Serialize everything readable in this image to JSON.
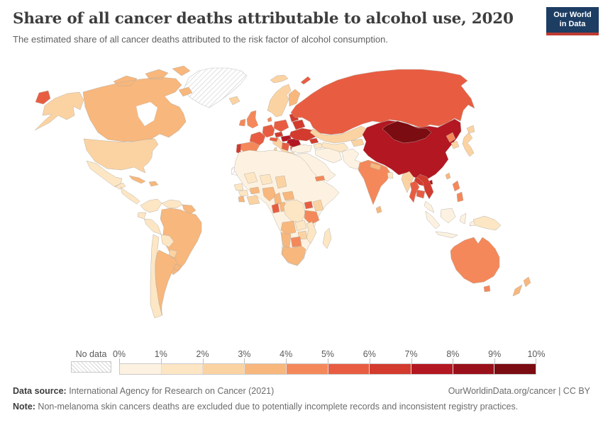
{
  "header": {
    "title": "Share of all cancer deaths attributable to alcohol use, 2020",
    "subtitle": "The estimated share of all cancer deaths attributed to the risk factor of alcohol consumption.",
    "logo_line1": "Our World",
    "logo_line2": "in Data",
    "logo_bg_color": "#1d3d63",
    "logo_bar_color": "#bf3a32"
  },
  "legend": {
    "no_data_label": "No data",
    "tick_labels": [
      "0%",
      "1%",
      "2%",
      "3%",
      "4%",
      "5%",
      "6%",
      "7%",
      "8%",
      "9%",
      "10%"
    ]
  },
  "footer": {
    "source_label": "Data source:",
    "source_text": " International Agency for Research on Cancer (2021)",
    "link_text": "OurWorldinData.org/cancer | CC BY",
    "note_label": "Note:",
    "note_text": " Non-melanoma skin cancers deaths are excluded due to potentially incomplete records and inconsistent registry practices."
  },
  "chart_data": {
    "type": "choropleth_map",
    "title": "Share of all cancer deaths attributable to alcohol use",
    "year": "2020",
    "unit": "%",
    "range": [
      0,
      10
    ],
    "bucket_width": 1,
    "colors": [
      "#fdf2e1",
      "#fde6c4",
      "#fbd3a2",
      "#f8b77c",
      "#f4885a",
      "#e85d42",
      "#d23b2e",
      "#b31722",
      "#9a101a",
      "#7a0c12"
    ],
    "no_data_fill": "hatched",
    "regions": {
      "Greenland": null,
      "Western Sahara": null,
      "Canada": 3.5,
      "United States": 2.5,
      "Mexico": 1.5,
      "Central America": 1.5,
      "Cuba": 3.5,
      "Hispaniola": 3.5,
      "Iceland": 2.5,
      "Colombia": 1.5,
      "Venezuela": 1.5,
      "Guyanas": 3.5,
      "Ecuador": 1.5,
      "Peru": 1.5,
      "Brazil": 3.5,
      "Bolivia": 1.5,
      "Paraguay": 2.5,
      "Chile": 1.5,
      "Argentina": 3.5,
      "Uruguay": 3.5,
      "United Kingdom": 4.5,
      "Ireland": 4.5,
      "Norway & Sweden": 2.5,
      "Finland": 3.5,
      "Denmark": 4.5,
      "Germany": 5.5,
      "France": 5.5,
      "Spain": 4.5,
      "Portugal": 6.5,
      "Italy": 2.5,
      "Poland": 5.5,
      "Czechia": 6.5,
      "Austria": 5.5,
      "Hungary & Slovakia": 7.5,
      "Romania": 7.5,
      "Moldova": 8.5,
      "Balkans": 5.5,
      "Bulgaria": 5.5,
      "Greece": 2.5,
      "Baltic states": 6.5,
      "Belarus": 6.5,
      "Ukraine": 6.5,
      "Russia": 5.5,
      "Kazakhstan": 2.5,
      "Uzbekistan & Turkmenistan": 1.5,
      "Kyrgyzstan & Tajikistan": 2.5,
      "Georgia": 6.5,
      "Azerbaijan & Armenia": 1.5,
      "Turkey": 0.5,
      "Middle East": 0.5,
      "Iran": 0.5,
      "Afghanistan & Pakistan": 0.5,
      "India": 4.5,
      "Nepal": 3.5,
      "Bangladesh": 1.5,
      "Sri Lanka": 3.5,
      "Myanmar": 2.5,
      "Thailand": 5.5,
      "Laos": 6.5,
      "Vietnam": 6.5,
      "Cambodia": 5.5,
      "Malaysia": 0.5,
      "Indonesia": 0.5,
      "Philippines": 4.5,
      "China": 7.5,
      "Mongolia": 9.5,
      "North Korea": 4.5,
      "South Korea": 2.5,
      "Japan": 2.5,
      "Taiwan": 3.5,
      "Northern Africa": 0.5,
      "Mali": 1.5,
      "Niger": 1.5,
      "Chad": 2.5,
      "Senegal": 1.5,
      "Guinea": 1.5,
      "Sierra Leone & Liberia": 3.5,
      "Côte d'Ivoire & Ghana": 2.5,
      "Burkina Faso": 3.5,
      "Nigeria": 3.5,
      "Cameroon": 3.5,
      "Central African Republic": 3.5,
      "Eritrea": 4.5,
      "Uganda": 5.5,
      "Kenya": 2.5,
      "Gabon": 5.5,
      "Congo": 3.5,
      "Democratic Republic of Congo": 1.5,
      "Tanzania": 4.5,
      "Angola": 3.5,
      "Zambia": 1.5,
      "Mozambique": 1.5,
      "Zimbabwe": 2.5,
      "Botswana": 4.5,
      "Namibia": 3.5,
      "South Africa": 3.5,
      "Madagascar": 1.5,
      "Papua New Guinea": 1.5,
      "Australia": 4.5,
      "New Zealand": 3.5
    }
  }
}
